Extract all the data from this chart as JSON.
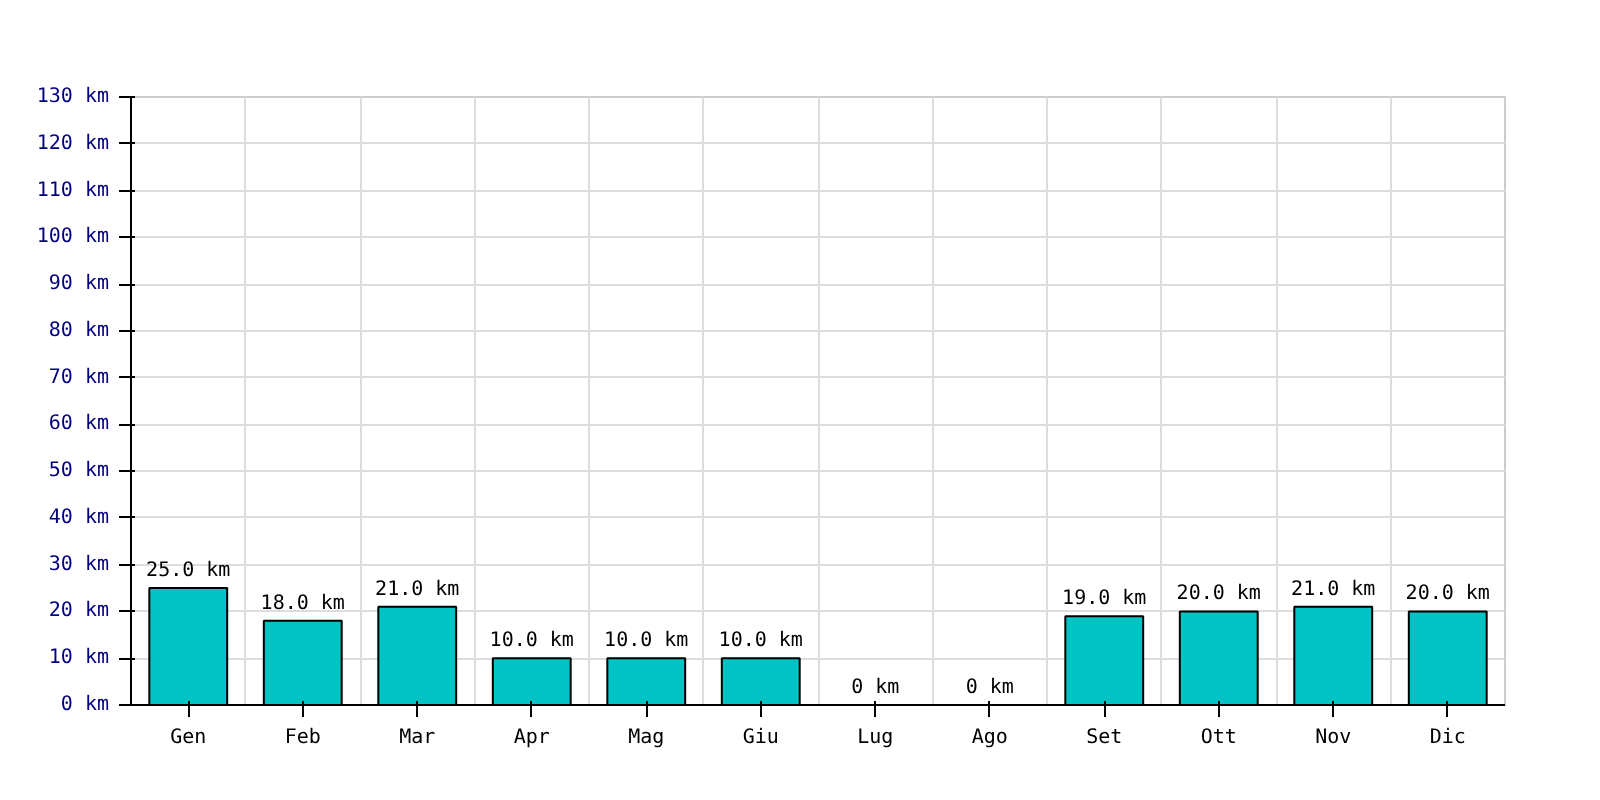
{
  "chart_data": {
    "type": "bar",
    "categories": [
      "Gen",
      "Feb",
      "Mar",
      "Apr",
      "Mag",
      "Giu",
      "Lug",
      "Ago",
      "Set",
      "Ott",
      "Nov",
      "Dic"
    ],
    "values": [
      25,
      18,
      21,
      10,
      10,
      10,
      0,
      0,
      19,
      20,
      21,
      20
    ],
    "value_labels": [
      "25.0 km",
      "18.0 km",
      "21.0 km",
      "10.0 km",
      "10.0 km",
      "10.0 km",
      "0 km",
      "0 km",
      "19.0 km",
      "20.0 km",
      "21.0 km",
      "20.0 km"
    ],
    "color": "#00c4c4",
    "ylim": [
      0,
      130
    ],
    "yticks": [
      {
        "value": 0,
        "label": "0 km"
      },
      {
        "value": 10,
        "label": "10 km"
      },
      {
        "value": 20,
        "label": "20 km"
      },
      {
        "value": 30,
        "label": "30 km"
      },
      {
        "value": 40,
        "label": "40 km"
      },
      {
        "value": 50,
        "label": "50 km"
      },
      {
        "value": 60,
        "label": "60 km"
      },
      {
        "value": 70,
        "label": "70 km"
      },
      {
        "value": 80,
        "label": "80 km"
      },
      {
        "value": 90,
        "label": "90 km"
      },
      {
        "value": 100,
        "label": "100 km"
      },
      {
        "value": 110,
        "label": "110 km"
      },
      {
        "value": 120,
        "label": "120 km"
      },
      {
        "value": 130,
        "label": "130 km"
      }
    ],
    "grid": true
  }
}
